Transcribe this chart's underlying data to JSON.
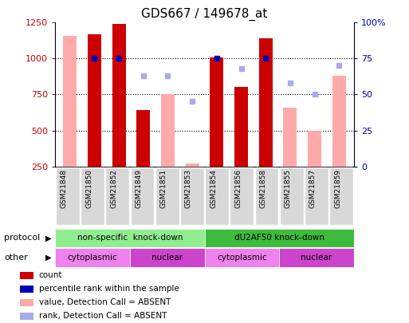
{
  "title": "GDS667 / 149678_at",
  "samples": [
    "GSM21848",
    "GSM21850",
    "GSM21852",
    "GSM21849",
    "GSM21851",
    "GSM21853",
    "GSM21854",
    "GSM21856",
    "GSM21858",
    "GSM21855",
    "GSM21857",
    "GSM21859"
  ],
  "count": [
    null,
    1170,
    1240,
    640,
    null,
    null,
    1010,
    800,
    1140,
    null,
    null,
    null
  ],
  "count_absent": [
    1160,
    null,
    null,
    null,
    750,
    270,
    null,
    null,
    null,
    660,
    500,
    880
  ],
  "rank_present_pct": [
    null,
    75,
    75,
    null,
    null,
    null,
    75,
    null,
    75,
    null,
    null,
    null
  ],
  "rank_absent_pct": [
    null,
    null,
    null,
    63,
    63,
    45,
    null,
    68,
    null,
    58,
    50,
    70
  ],
  "ylim_left": [
    250,
    1250
  ],
  "ylim_right": [
    0,
    100
  ],
  "yticks_left": [
    250,
    500,
    750,
    1000,
    1250
  ],
  "yticks_right": [
    0,
    25,
    50,
    75,
    100
  ],
  "protocol_groups": [
    {
      "label": "non-specific  knock-down",
      "start": 0,
      "end": 6,
      "color": "#90ee90"
    },
    {
      "label": "dU2AF50 knock-down",
      "start": 6,
      "end": 12,
      "color": "#3dbb3d"
    }
  ],
  "other_groups": [
    {
      "label": "cytoplasmic",
      "start": 0,
      "end": 3,
      "color": "#ee82ee"
    },
    {
      "label": "nuclear",
      "start": 3,
      "end": 6,
      "color": "#cc44cc"
    },
    {
      "label": "cytoplasmic",
      "start": 6,
      "end": 9,
      "color": "#ee82ee"
    },
    {
      "label": "nuclear",
      "start": 9,
      "end": 12,
      "color": "#cc44cc"
    }
  ],
  "bar_width": 0.55,
  "count_color": "#cc0000",
  "count_absent_color": "#ffaaaa",
  "rank_present_color": "#0000bb",
  "rank_absent_color": "#aaaaee",
  "bg_color": "#ffffff",
  "label_color_left": "#cc0000",
  "label_color_right": "#0000bb"
}
